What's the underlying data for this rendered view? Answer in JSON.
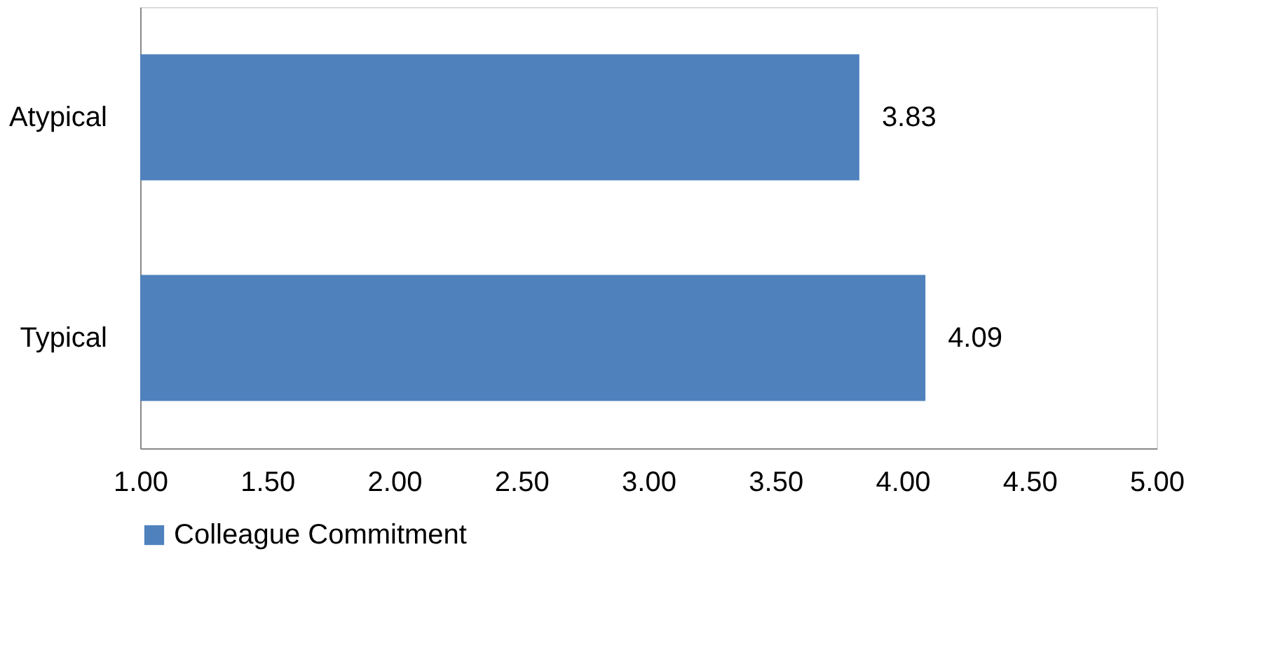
{
  "chart_data": {
    "type": "bar",
    "orientation": "horizontal",
    "categories": [
      "Atypical",
      "Typical"
    ],
    "series": [
      {
        "name": "Colleague Commitment",
        "color": "#4f81bd",
        "values": [
          3.83,
          4.09
        ]
      }
    ],
    "xlim": [
      1,
      5
    ],
    "xticks": [
      {
        "value": 1,
        "label": "1.00"
      },
      {
        "value": 1.5,
        "label": "1.50"
      },
      {
        "value": 2,
        "label": "2.00"
      },
      {
        "value": 2.5,
        "label": "2.50"
      },
      {
        "value": 3,
        "label": "3.00"
      },
      {
        "value": 3.5,
        "label": "3.50"
      },
      {
        "value": 4,
        "label": "4.00"
      },
      {
        "value": 4.5,
        "label": "4.50"
      },
      {
        "value": 5,
        "label": "5.00"
      }
    ],
    "data_labels": true,
    "grid": false,
    "legend": "bottom"
  }
}
